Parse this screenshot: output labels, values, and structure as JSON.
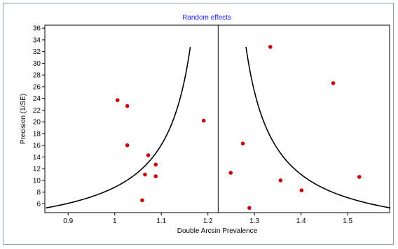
{
  "chart_data": {
    "type": "scatter",
    "subtype": "funnel-plot",
    "title": "Random effects",
    "xlabel": "Double Arcsin Prevalence",
    "ylabel": "Precision (1/SE)",
    "xlim": [
      0.85,
      1.59
    ],
    "ylim": [
      4.5,
      36.5
    ],
    "xticks": [
      0.9,
      1,
      1.1,
      1.2,
      1.3,
      1.4,
      1.5
    ],
    "xtick_labels": [
      "0.9",
      "1",
      "1.1",
      "1.2",
      "1.3",
      "1.4",
      "1.5"
    ],
    "yticks": [
      6,
      8,
      10,
      12,
      14,
      16,
      18,
      20,
      22,
      24,
      26,
      28,
      30,
      32,
      34,
      36
    ],
    "ytick_labels": [
      "6",
      "8",
      "10",
      "12",
      "14",
      "16",
      "18",
      "20",
      "22",
      "24",
      "26",
      "28",
      "30",
      "32",
      "34",
      "36"
    ],
    "pooled_estimate": 1.222,
    "funnel_ci_multiplier": 1.96,
    "funnel_y_range": [
      5.3,
      32.8
    ],
    "point_color": "#cc0000",
    "points": [
      {
        "x": 1.006,
        "y": 23.7
      },
      {
        "x": 1.027,
        "y": 22.7
      },
      {
        "x": 1.027,
        "y": 16.0
      },
      {
        "x": 1.059,
        "y": 6.6
      },
      {
        "x": 1.065,
        "y": 11.0
      },
      {
        "x": 1.072,
        "y": 14.3
      },
      {
        "x": 1.088,
        "y": 12.7
      },
      {
        "x": 1.088,
        "y": 10.7
      },
      {
        "x": 1.191,
        "y": 20.2
      },
      {
        "x": 1.249,
        "y": 11.3
      },
      {
        "x": 1.275,
        "y": 16.3
      },
      {
        "x": 1.289,
        "y": 5.3
      },
      {
        "x": 1.334,
        "y": 32.8
      },
      {
        "x": 1.356,
        "y": 10.0
      },
      {
        "x": 1.401,
        "y": 8.3
      },
      {
        "x": 1.469,
        "y": 26.6
      },
      {
        "x": 1.525,
        "y": 10.6
      }
    ]
  }
}
